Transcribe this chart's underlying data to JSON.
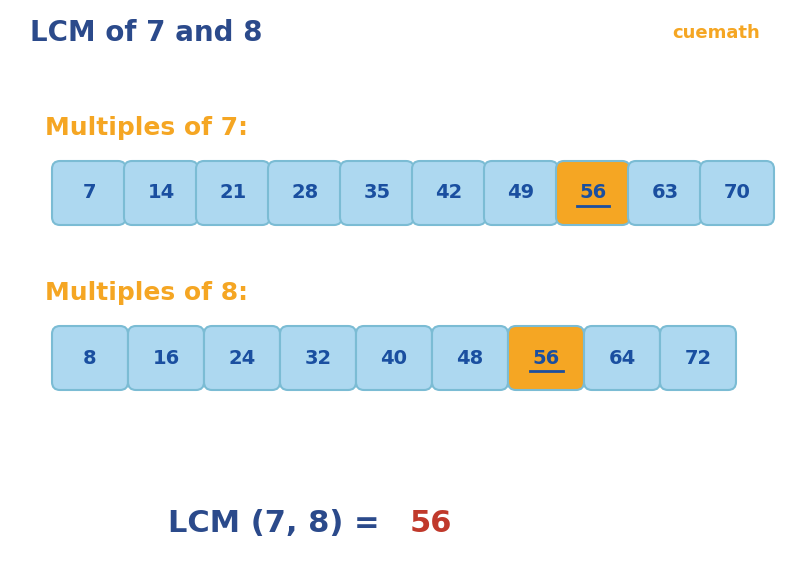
{
  "title": "LCM of 7 and 8",
  "title_color": "#2b4a8b",
  "title_fontsize": 20,
  "background_color": "#ffffff",
  "label1": "Multiples of 7:",
  "label2": "Multiples of 8:",
  "label_color": "#f5a623",
  "label_fontsize": 18,
  "multiples_7": [
    7,
    14,
    21,
    28,
    35,
    42,
    49,
    56,
    63,
    70
  ],
  "multiples_8": [
    8,
    16,
    24,
    32,
    40,
    48,
    56,
    64,
    72
  ],
  "highlight_7": 56,
  "highlight_8": 56,
  "box_color_normal": "#add8f0",
  "box_color_highlight": "#f5a623",
  "text_color_normal": "#1a4fa0",
  "text_color_highlight": "#1a4fa0",
  "box_edge_color": "#7bbcd4",
  "result_prefix": "LCM (7, 8) = ",
  "result_value": "56",
  "result_text_color": "#2b4a8b",
  "result_value_color": "#c0392b",
  "result_fontsize": 22,
  "cuemath_color": "#f5a623"
}
